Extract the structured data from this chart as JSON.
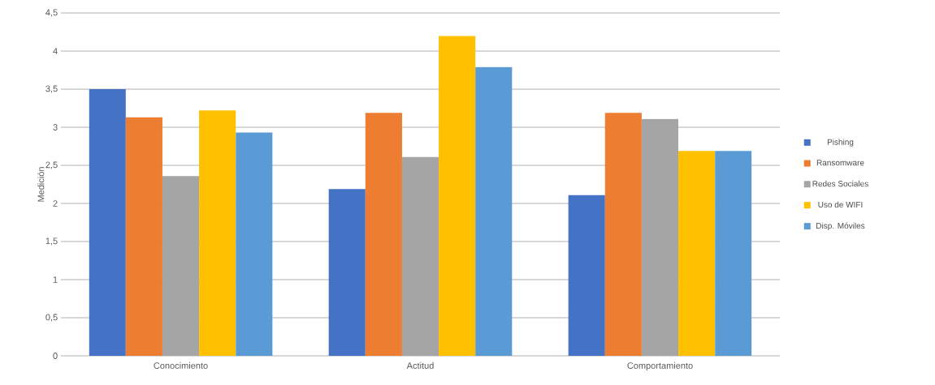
{
  "chart_data": {
    "type": "bar",
    "ylabel": "Medición",
    "categories": [
      "Conocimiento",
      "Actitud",
      "Comportamiento"
    ],
    "series": [
      {
        "name": "Pishing",
        "color": "#4472c4",
        "values": [
          3.5,
          2.19,
          2.11
        ]
      },
      {
        "name": "Ransomware",
        "color": "#ed7d31",
        "values": [
          3.13,
          3.19,
          3.19
        ]
      },
      {
        "name": "Redes Sociales",
        "color": "#a5a5a5",
        "values": [
          2.36,
          2.61,
          3.11
        ]
      },
      {
        "name": "Uso de WIFI",
        "color": "#ffc000",
        "values": [
          3.22,
          4.2,
          2.69
        ]
      },
      {
        "name": "Disp. Móviles",
        "color": "#5b9bd5",
        "values": [
          2.93,
          3.79,
          2.69
        ]
      }
    ],
    "ylim": [
      0,
      4.5
    ],
    "yticks": [
      0,
      {
        "value": 0.5,
        "label": "0,5"
      },
      1,
      {
        "value": 1.5,
        "label": "1,5"
      },
      2,
      {
        "value": 2.5,
        "label": "2,5"
      },
      3,
      {
        "value": 3.5,
        "label": "3,5"
      },
      4,
      {
        "value": 4.5,
        "label": "4,5"
      }
    ],
    "grid": "y",
    "legend": "right"
  }
}
